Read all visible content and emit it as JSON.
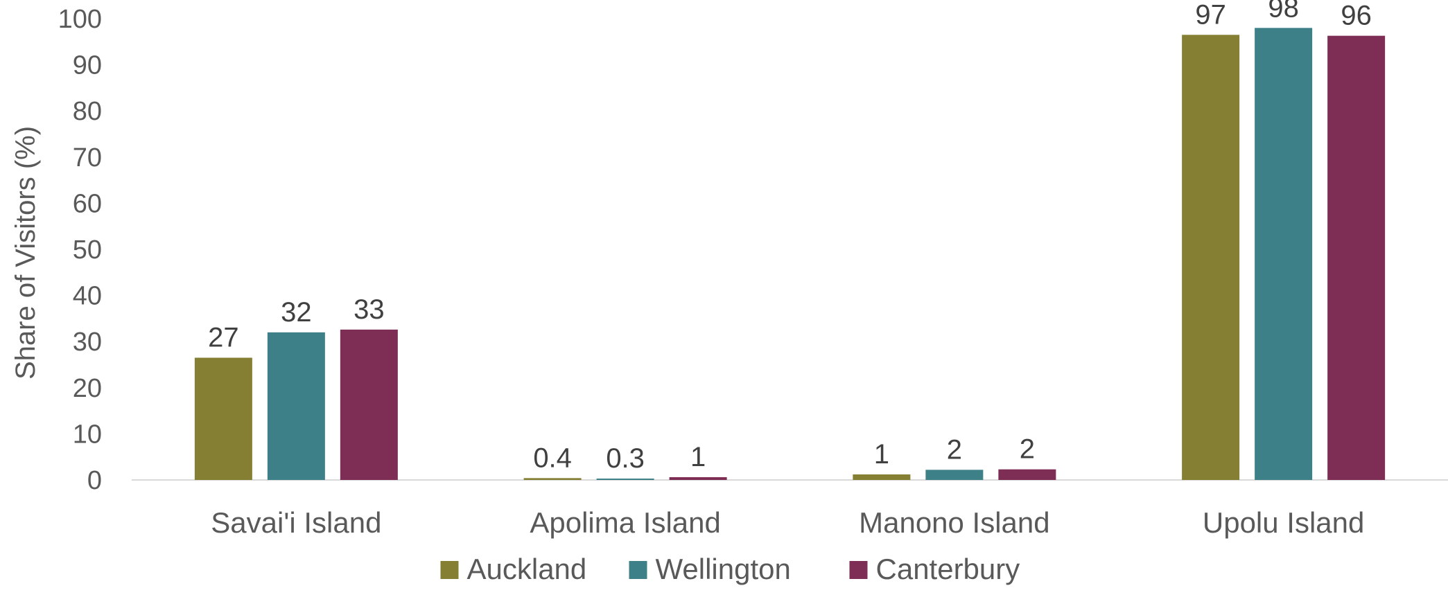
{
  "chart_data": {
    "type": "bar",
    "title": "",
    "xlabel": "",
    "ylabel": "Share of Visitors (%)",
    "ylim": [
      0,
      100
    ],
    "yticks": [
      0,
      10,
      20,
      30,
      40,
      50,
      60,
      70,
      80,
      90,
      100
    ],
    "grid": false,
    "legend_position": "bottom",
    "categories": [
      "Savai'i Island",
      "Apolima Island",
      "Manono Island",
      "Upolu Island"
    ],
    "series": [
      {
        "name": "Auckland",
        "color": "#857F33",
        "values": [
          27,
          0.4,
          1,
          97
        ],
        "labels": [
          "27",
          "0.4",
          "1",
          "97"
        ],
        "plot_values": [
          26.5,
          0.4,
          1.2,
          96.5
        ]
      },
      {
        "name": "Wellington",
        "color": "#3D8088",
        "values": [
          32,
          0.3,
          2,
          98
        ],
        "labels": [
          "32",
          "0.3",
          "2",
          "98"
        ],
        "plot_values": [
          32,
          0.3,
          2.2,
          98
        ]
      },
      {
        "name": "Canterbury",
        "color": "#7E2E55",
        "values": [
          33,
          1,
          2,
          96
        ],
        "labels": [
          "33",
          "1",
          "2",
          "96"
        ],
        "plot_values": [
          32.6,
          0.6,
          2.3,
          96.3
        ]
      }
    ]
  }
}
